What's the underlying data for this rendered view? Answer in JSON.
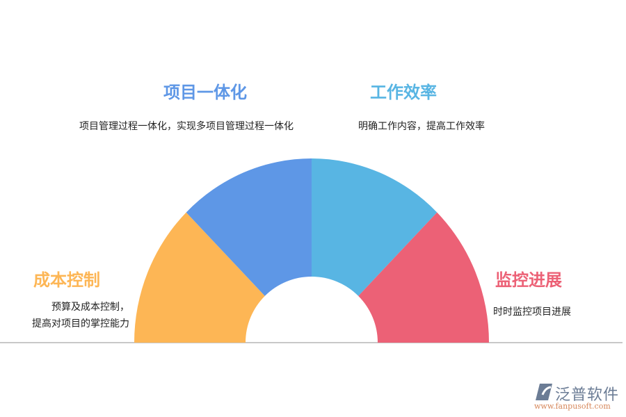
{
  "segments": [
    {
      "title": "成本控制",
      "desc": [
        "预算及成本控制，",
        "提高对项目的掌控能力"
      ],
      "color": "#fdb655"
    },
    {
      "title": "项目一体化",
      "desc": [
        "项目管理过程一体化，实现多项目管理过程一体化"
      ],
      "color": "#5e97e6"
    },
    {
      "title": "工作效率",
      "desc": [
        "明确工作内容，提高工作效率"
      ],
      "color": "#58b5e3"
    },
    {
      "title": "监控进展",
      "desc": [
        "时时监控项目进展"
      ],
      "color": "#ec6176"
    }
  ],
  "title_colors": {
    "left": "#fdb655",
    "top_left": "#5e97e6",
    "top_right": "#58b5e3",
    "right": "#ec6176"
  },
  "logo": {
    "name": "泛普软件",
    "url": "www.fanpusoft.com"
  }
}
